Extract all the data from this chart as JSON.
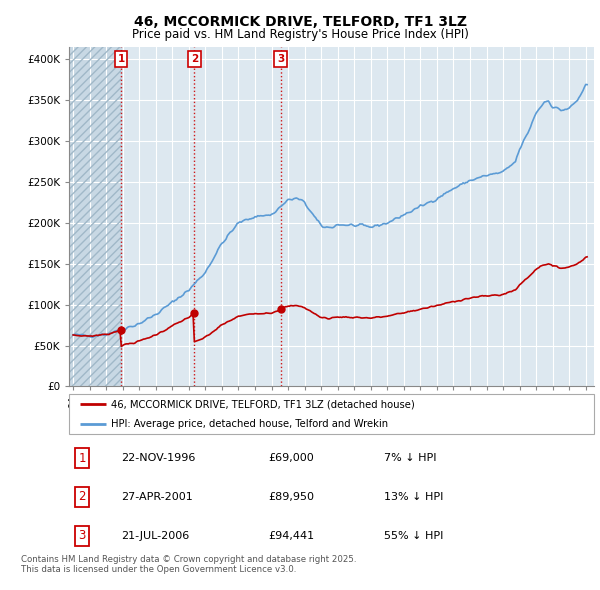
{
  "title_line1": "46, MCCORMICK DRIVE, TELFORD, TF1 3LZ",
  "title_line2": "Price paid vs. HM Land Registry's House Price Index (HPI)",
  "background_color": "#ffffff",
  "plot_bg_color": "#dde8f0",
  "grid_color": "#ffffff",
  "ytick_labels": [
    "£0",
    "£50K",
    "£100K",
    "£150K",
    "£200K",
    "£250K",
    "£300K",
    "£350K",
    "£400K"
  ],
  "yticks": [
    0,
    50000,
    100000,
    150000,
    200000,
    250000,
    300000,
    350000,
    400000
  ],
  "ylim": [
    0,
    415000
  ],
  "xlim_start": 1993.75,
  "xlim_end": 2025.5,
  "hpi_line_color": "#5b9bd5",
  "price_line_color": "#c00000",
  "sale_points": [
    {
      "year": 1996.9,
      "price": 69000,
      "label": "1"
    },
    {
      "year": 2001.33,
      "price": 89950,
      "label": "2"
    },
    {
      "year": 2006.55,
      "price": 94441,
      "label": "3"
    }
  ],
  "vline_color": "#cc0000",
  "legend_house_label": "46, MCCORMICK DRIVE, TELFORD, TF1 3LZ (detached house)",
  "legend_hpi_label": "HPI: Average price, detached house, Telford and Wrekin",
  "table_entries": [
    {
      "num": "1",
      "date": "22-NOV-1996",
      "price": "£69,000",
      "hpi": "7% ↓ HPI"
    },
    {
      "num": "2",
      "date": "27-APR-2001",
      "price": "£89,950",
      "hpi": "13% ↓ HPI"
    },
    {
      "num": "3",
      "date": "21-JUL-2006",
      "price": "£94,441",
      "hpi": "55% ↓ HPI"
    }
  ],
  "footer": "Contains HM Land Registry data © Crown copyright and database right 2025.\nThis data is licensed under the Open Government Licence v3.0."
}
